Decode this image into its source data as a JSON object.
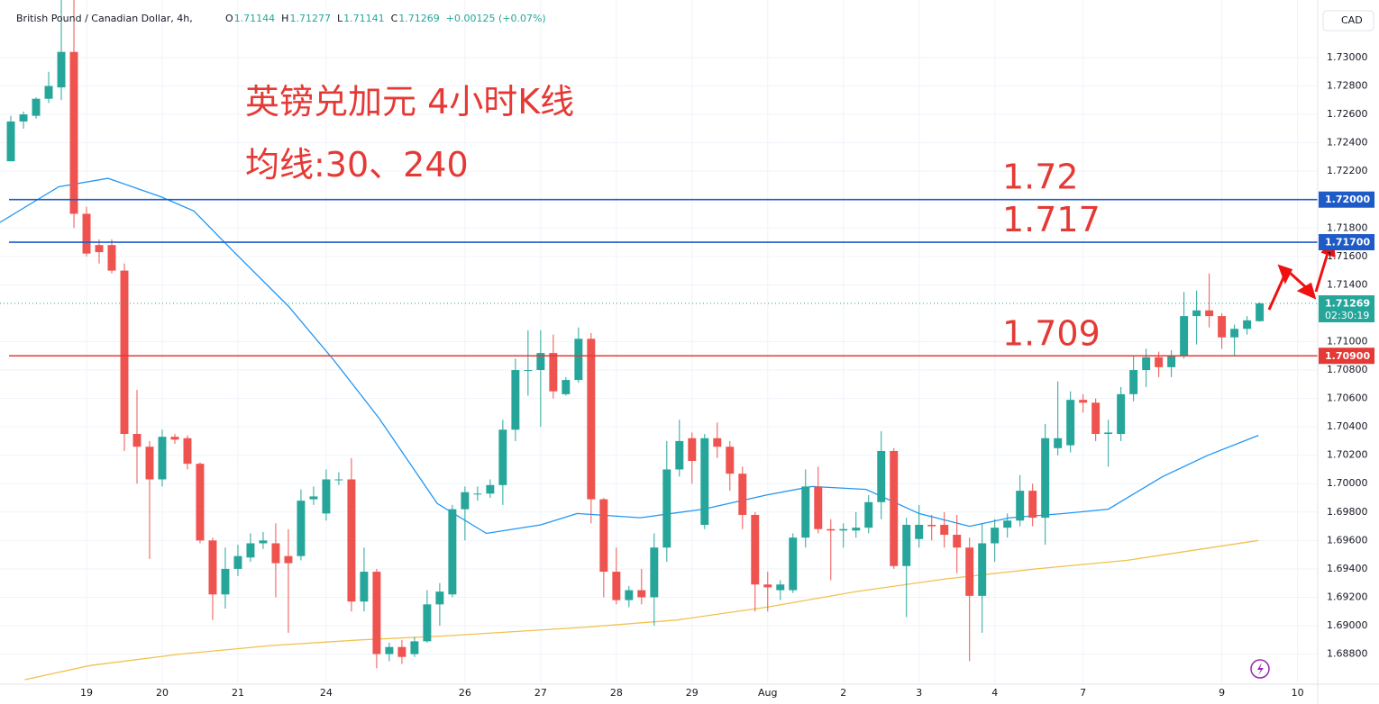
{
  "chart_data": {
    "type": "candlestick",
    "symbol": "British Pound / Canadian Dollar, 4h,",
    "ohlc_labels": [
      "O",
      "H",
      "L",
      "C"
    ],
    "change": "+0.00125 (+0.07%)",
    "currency": "CAD",
    "countdown": "02:30:19",
    "title": "英镑兑加元 4小时K线",
    "subtitle": "均线:30、240",
    "up_color": "#26a69a",
    "down_color": "#ef5350",
    "x": [
      0,
      1,
      2,
      3,
      4,
      5,
      6,
      7,
      8,
      9,
      10,
      11,
      12,
      13,
      14,
      15,
      16,
      17,
      18,
      19,
      20,
      21,
      22,
      23,
      24,
      25,
      26,
      27,
      28,
      29,
      30,
      31,
      32,
      33,
      34,
      35,
      36,
      37,
      38,
      39,
      40,
      41,
      42,
      43,
      44,
      45,
      46,
      47,
      48,
      49,
      50,
      51,
      52,
      53,
      54,
      55,
      56,
      57,
      58,
      59,
      60,
      61,
      62,
      63,
      64,
      65,
      66,
      67,
      68,
      69,
      70,
      71,
      72,
      73,
      74,
      75,
      76,
      77,
      78,
      79,
      80,
      81,
      82,
      83,
      84,
      85,
      86,
      87,
      88,
      89,
      90,
      91,
      92,
      93,
      94,
      95,
      96,
      97,
      98,
      99
    ],
    "open": [
      1.7227,
      1.7255,
      1.7259,
      1.7271,
      1.7279,
      1.7304,
      1.719,
      1.7168,
      1.7168,
      1.715,
      1.7035,
      1.7026,
      1.7003,
      1.7033,
      1.7032,
      1.7014,
      1.696,
      1.6922,
      1.694,
      1.6948,
      1.6958,
      1.6958,
      1.6949,
      1.6949,
      1.6989,
      1.6979,
      1.7003,
      1.7003,
      1.6917,
      1.6938,
      1.688,
      1.6885,
      1.688,
      1.6889,
      1.6915,
      1.6922,
      1.6982,
      1.6993,
      1.6993,
      1.6999,
      1.7038,
      1.708,
      1.708,
      1.7092,
      1.7063,
      1.7073,
      1.7102,
      1.6989,
      1.6938,
      1.6918,
      1.6925,
      1.692,
      1.6955,
      1.701,
      1.7032,
      1.6971,
      1.7032,
      1.7026,
      1.7007,
      1.6978,
      1.6929,
      1.6925,
      1.6925,
      1.6962,
      1.6998,
      1.6968,
      1.6967,
      1.6967,
      1.6969,
      1.6987,
      1.7023,
      1.6942,
      1.6961,
      1.6971,
      1.6971,
      1.6964,
      1.6955,
      1.6921,
      1.6958,
      1.6969,
      1.6974,
      1.6995,
      1.6976,
      1.7025,
      1.7027,
      1.7059,
      1.7057,
      1.7035,
      1.7035,
      1.7063,
      1.708,
      1.7089,
      1.7082,
      1.709,
      1.7118,
      1.7122,
      1.7118,
      1.7103,
      1.7109,
      1.71144
    ],
    "high": [
      1.7259,
      1.7262,
      1.7272,
      1.729,
      1.7345,
      1.7345,
      1.7195,
      1.7172,
      1.7172,
      1.7155,
      1.7066,
      1.703,
      1.7038,
      1.7035,
      1.7034,
      1.7015,
      1.6962,
      1.6955,
      1.6957,
      1.6965,
      1.6966,
      1.6972,
      1.6968,
      1.6996,
      1.6998,
      1.701,
      1.7008,
      1.7018,
      1.6955,
      1.694,
      1.6888,
      1.689,
      1.6892,
      1.6925,
      1.693,
      1.6985,
      1.6998,
      1.6998,
      1.7003,
      1.7045,
      1.7088,
      1.7108,
      1.7108,
      1.7105,
      1.7075,
      1.711,
      1.7106,
      1.699,
      1.6955,
      1.6928,
      1.694,
      1.6965,
      1.703,
      1.7045,
      1.7036,
      1.7035,
      1.7043,
      1.703,
      1.7012,
      1.698,
      1.6938,
      1.6932,
      1.6965,
      1.701,
      1.7012,
      1.6975,
      1.6972,
      1.698,
      1.6992,
      1.7037,
      1.7025,
      1.6976,
      1.6985,
      1.6978,
      1.698,
      1.6978,
      1.6962,
      1.6972,
      1.6975,
      1.6979,
      1.7006,
      1.7,
      1.7042,
      1.7072,
      1.7065,
      1.7063,
      1.706,
      1.7045,
      1.7068,
      1.709,
      1.7095,
      1.7093,
      1.7094,
      1.7135,
      1.7136,
      1.7148,
      1.712,
      1.7112,
      1.7118,
      1.71277
    ],
    "low": [
      1.7227,
      1.725,
      1.7257,
      1.7268,
      1.727,
      1.718,
      1.716,
      1.7155,
      1.7148,
      1.7023,
      1.7,
      1.6947,
      1.6998,
      1.7028,
      1.701,
      1.6958,
      1.6904,
      1.6912,
      1.6935,
      1.6945,
      1.6954,
      1.692,
      1.6895,
      1.6946,
      1.6985,
      1.6974,
      1.6999,
      1.691,
      1.691,
      1.687,
      1.6875,
      1.6873,
      1.6878,
      1.6888,
      1.69,
      1.692,
      1.696,
      1.6988,
      1.699,
      1.6985,
      1.703,
      1.7062,
      1.704,
      1.706,
      1.7062,
      1.7071,
      1.6972,
      1.692,
      1.6915,
      1.6913,
      1.6915,
      1.69,
      1.6945,
      1.7005,
      1.7,
      1.6968,
      1.7018,
      1.6995,
      1.6968,
      1.691,
      1.691,
      1.6918,
      1.6923,
      1.6955,
      1.6965,
      1.6932,
      1.6955,
      1.6962,
      1.6965,
      1.6975,
      1.694,
      1.6906,
      1.6955,
      1.696,
      1.6955,
      1.6937,
      1.6875,
      1.6895,
      1.6945,
      1.6962,
      1.697,
      1.697,
      1.6957,
      1.702,
      1.7022,
      1.705,
      1.703,
      1.7012,
      1.703,
      1.7058,
      1.7068,
      1.7075,
      1.7075,
      1.7088,
      1.7098,
      1.711,
      1.7095,
      1.709,
      1.7105,
      1.71141
    ],
    "close": [
      1.7255,
      1.726,
      1.7271,
      1.728,
      1.7304,
      1.719,
      1.7162,
      1.7163,
      1.715,
      1.7035,
      1.7026,
      1.7003,
      1.7033,
      1.7031,
      1.7014,
      1.696,
      1.6922,
      1.694,
      1.6949,
      1.6958,
      1.696,
      1.6944,
      1.6944,
      1.6988,
      1.6991,
      1.7003,
      1.7003,
      1.6917,
      1.6938,
      1.688,
      1.6885,
      1.6878,
      1.6889,
      1.6915,
      1.6924,
      1.6982,
      1.6994,
      1.6993,
      1.6999,
      1.7038,
      1.708,
      1.708,
      1.7092,
      1.7065,
      1.7073,
      1.7102,
      1.6989,
      1.6938,
      1.6918,
      1.6925,
      1.692,
      1.6955,
      1.701,
      1.703,
      1.7016,
      1.7032,
      1.7026,
      1.7007,
      1.6978,
      1.6929,
      1.6927,
      1.6929,
      1.6962,
      1.6998,
      1.6968,
      1.6967,
      1.6968,
      1.6969,
      1.6987,
      1.7023,
      1.6942,
      1.6971,
      1.6971,
      1.697,
      1.6964,
      1.6955,
      1.6921,
      1.6958,
      1.6969,
      1.6974,
      1.6995,
      1.6976,
      1.7032,
      1.7032,
      1.7059,
      1.7057,
      1.7035,
      1.7036,
      1.7063,
      1.708,
      1.7089,
      1.7082,
      1.709,
      1.7118,
      1.7122,
      1.7118,
      1.7103,
      1.7109,
      1.7115,
      1.71269
    ],
    "moving_averages": [
      {
        "color": "#2196f3",
        "x": [
          -0.86,
          3.8,
          7.7,
          11.9,
          14.5,
          17.7,
          22,
          25.6,
          29.2,
          33.8,
          37.7,
          42,
          44.9,
          49.9,
          54.9,
          59.9,
          63.5,
          67.8,
          72,
          76,
          79.2,
          83.5,
          87,
          91.3,
          94.9,
          98.9
        ],
        "values": [
          1.7184,
          1.7209,
          1.7215,
          1.7202,
          1.7192,
          1.7163,
          1.7125,
          1.7087,
          1.7046,
          1.6986,
          1.6965,
          1.6971,
          1.6979,
          1.6976,
          1.6982,
          1.6992,
          1.6998,
          1.6996,
          1.6979,
          1.697,
          1.6976,
          1.6979,
          1.6982,
          1.7005,
          1.702,
          1.7034
        ]
      },
      {
        "color": "#f2c14e",
        "x": [
          1.1,
          6.3,
          13.4,
          20.6,
          27.7,
          34.9,
          45.6,
          52.8,
          59.9,
          67,
          74.2,
          81.3,
          88.5,
          98.9
        ],
        "values": [
          1.6862,
          1.6872,
          1.688,
          1.6886,
          1.689,
          1.6893,
          1.6899,
          1.6904,
          1.6913,
          1.6924,
          1.6933,
          1.694,
          1.6946,
          1.696
        ]
      }
    ],
    "hlines": [
      {
        "value": 1.72,
        "label": "1.72000",
        "annotation": "1.72",
        "color": "#1e5bc6"
      },
      {
        "value": 1.717,
        "label": "1.71700",
        "annotation": "1.717",
        "color": "#1e5bc6"
      },
      {
        "value": 1.709,
        "label": "1.70900",
        "annotation": "1.709",
        "color": "#e53935"
      }
    ],
    "xlim": [
      -0.86,
      103.6
    ],
    "ylim": [
      1.68588,
      1.73342
    ],
    "xticks": [
      {
        "value": 6,
        "label": "19"
      },
      {
        "value": 12,
        "label": "20"
      },
      {
        "value": 18,
        "label": "21"
      },
      {
        "value": 25,
        "label": "24"
      },
      {
        "value": 36,
        "label": "26"
      },
      {
        "value": 42,
        "label": "27"
      },
      {
        "value": 48,
        "label": "28"
      },
      {
        "value": 54,
        "label": "29"
      },
      {
        "value": 60,
        "label": "Aug"
      },
      {
        "value": 66,
        "label": "2"
      },
      {
        "value": 72,
        "label": "3"
      },
      {
        "value": 78,
        "label": "4"
      },
      {
        "value": 85,
        "label": "7"
      },
      {
        "value": 96,
        "label": "9"
      },
      {
        "value": 102,
        "label": "10"
      }
    ],
    "yticks": [
      {
        "value": 1.688,
        "label": "1.68800"
      },
      {
        "value": 1.69,
        "label": "1.69000"
      },
      {
        "value": 1.692,
        "label": "1.69200"
      },
      {
        "value": 1.694,
        "label": "1.69400"
      },
      {
        "value": 1.696,
        "label": "1.69600"
      },
      {
        "value": 1.698,
        "label": "1.69800"
      },
      {
        "value": 1.7,
        "label": "1.70000"
      },
      {
        "value": 1.702,
        "label": "1.70200"
      },
      {
        "value": 1.704,
        "label": "1.70400"
      },
      {
        "value": 1.706,
        "label": "1.70600"
      },
      {
        "value": 1.708,
        "label": "1.70800"
      },
      {
        "value": 1.71,
        "label": "1.71000"
      },
      {
        "value": 1.714,
        "label": "1.71400"
      },
      {
        "value": 1.716,
        "label": "1.71600"
      },
      {
        "value": 1.718,
        "label": "1.71800"
      },
      {
        "value": 1.722,
        "label": "1.72200"
      },
      {
        "value": 1.724,
        "label": "1.72400"
      },
      {
        "value": 1.726,
        "label": "1.72600"
      },
      {
        "value": 1.728,
        "label": "1.72800"
      },
      {
        "value": 1.73,
        "label": "1.73000"
      }
    ],
    "grid": true
  }
}
